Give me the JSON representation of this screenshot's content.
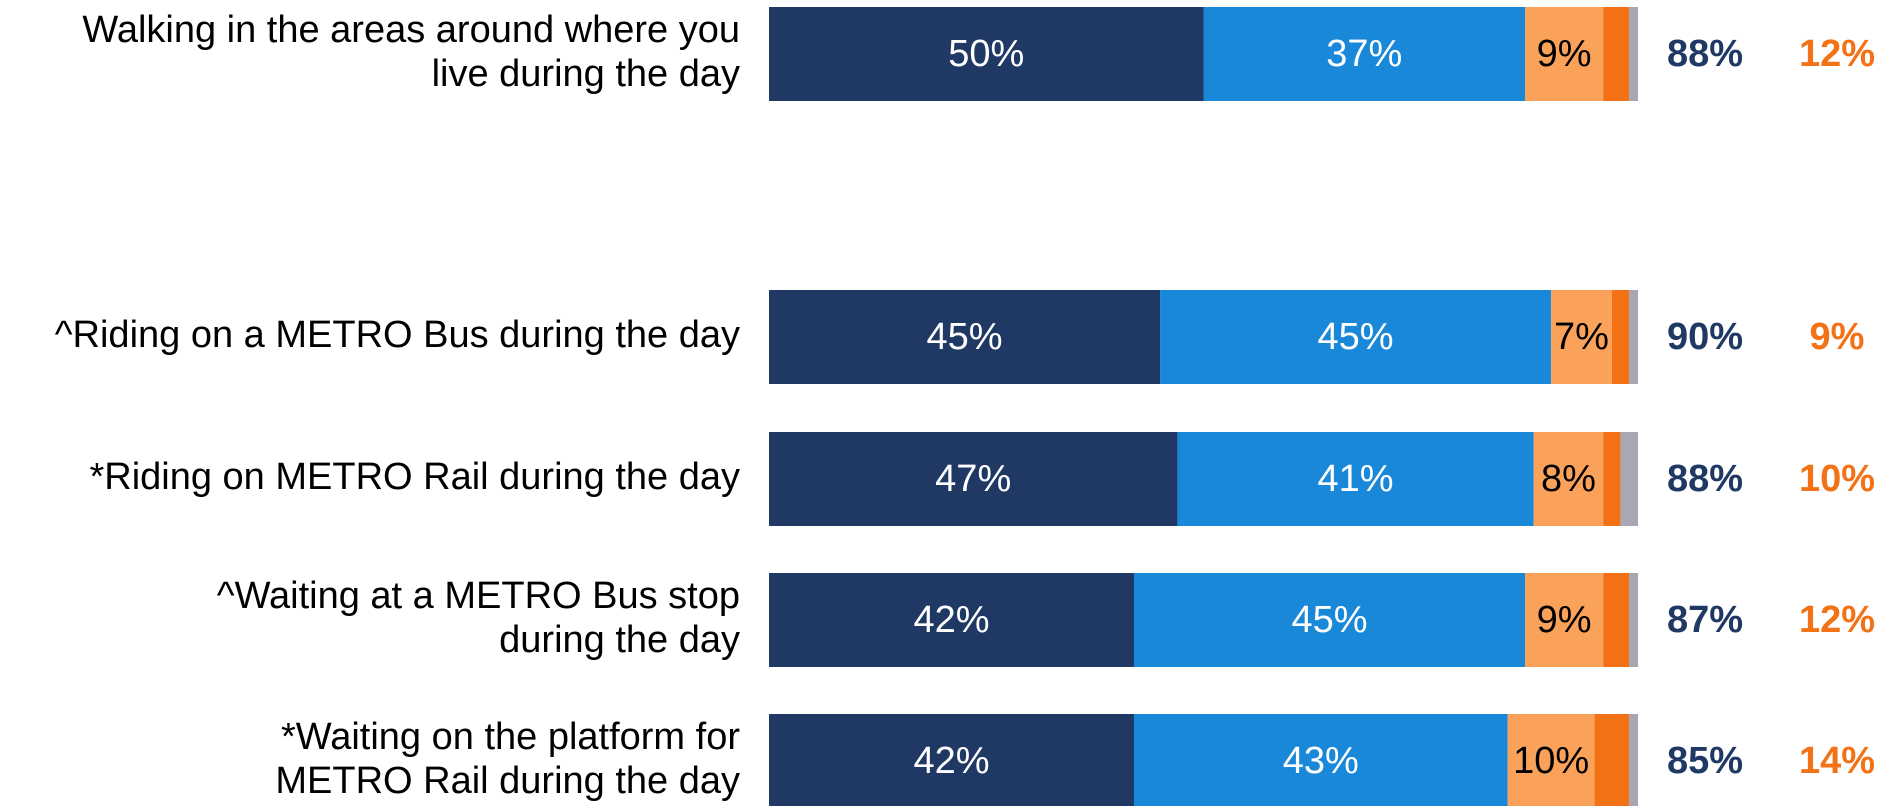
{
  "chart_data": {
    "type": "stacked-bar-horizontal",
    "categories": [
      [
        "Walking in the areas around where you",
        "live during the day"
      ],
      [
        "^Riding on a METRO Bus during the day"
      ],
      [
        "*Riding on METRO Rail during the day"
      ],
      [
        "^Waiting at a METRO Bus stop",
        "during the day"
      ],
      [
        "*Waiting on the platform for",
        "METRO Rail during the day"
      ]
    ],
    "xlim": [
      0,
      100
    ],
    "series": [
      {
        "color": "#1f3864",
        "label_color": "#ffffff",
        "values": [
          50,
          45,
          47,
          42,
          42
        ],
        "value_labels": [
          "50%",
          "45%",
          "47%",
          "42%",
          "42%"
        ]
      },
      {
        "color": "#1a88d8",
        "label_color": "#ffffff",
        "values": [
          37,
          45,
          41,
          45,
          43
        ],
        "value_labels": [
          "37%",
          "45%",
          "41%",
          "45%",
          "43%"
        ]
      },
      {
        "color": "#fba25a",
        "label_color": "#000000",
        "values": [
          9,
          7,
          8,
          9,
          10
        ],
        "value_labels": [
          "9%",
          "7%",
          "8%",
          "9%",
          "10%"
        ]
      },
      {
        "color": "#f47216",
        "values": [
          3,
          2,
          2,
          3,
          4
        ]
      },
      {
        "color": "#a7a8b4",
        "values": [
          1,
          1,
          2,
          1,
          1
        ]
      }
    ],
    "totals": [
      {
        "color": "#1f3864",
        "values": [
          88,
          90,
          88,
          87,
          85
        ],
        "value_labels": [
          "88%",
          "90%",
          "88%",
          "87%",
          "85%"
        ]
      },
      {
        "color": "#f47216",
        "values": [
          12,
          9,
          10,
          12,
          14
        ],
        "value_labels": [
          "12%",
          "9%",
          "10%",
          "12%",
          "14%"
        ]
      }
    ]
  }
}
